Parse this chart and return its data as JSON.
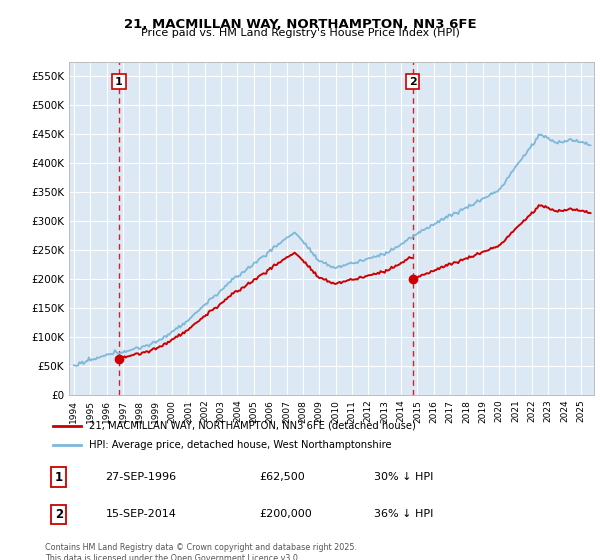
{
  "title1": "21, MACMILLAN WAY, NORTHAMPTON, NN3 6FE",
  "title2": "Price paid vs. HM Land Registry's House Price Index (HPI)",
  "legend_line1": "21, MACMILLAN WAY, NORTHAMPTON, NN3 6FE (detached house)",
  "legend_line2": "HPI: Average price, detached house, West Northamptonshire",
  "footnote": "Contains HM Land Registry data © Crown copyright and database right 2025.\nThis data is licensed under the Open Government Licence v3.0.",
  "sale1_date": "27-SEP-1996",
  "sale1_price": 62500,
  "sale1_label": "30% ↓ HPI",
  "sale2_date": "15-SEP-2014",
  "sale2_price": 200000,
  "sale2_label": "36% ↓ HPI",
  "hpi_color": "#7db8d8",
  "price_color": "#cc0000",
  "vline_color": "#cc0000",
  "ylim": [
    0,
    575000
  ],
  "yticks": [
    0,
    50000,
    100000,
    150000,
    200000,
    250000,
    300000,
    350000,
    400000,
    450000,
    500000,
    550000
  ],
  "xlim_start": 1993.7,
  "xlim_end": 2025.8,
  "sale1_year": 1996.75,
  "sale2_year": 2014.71
}
